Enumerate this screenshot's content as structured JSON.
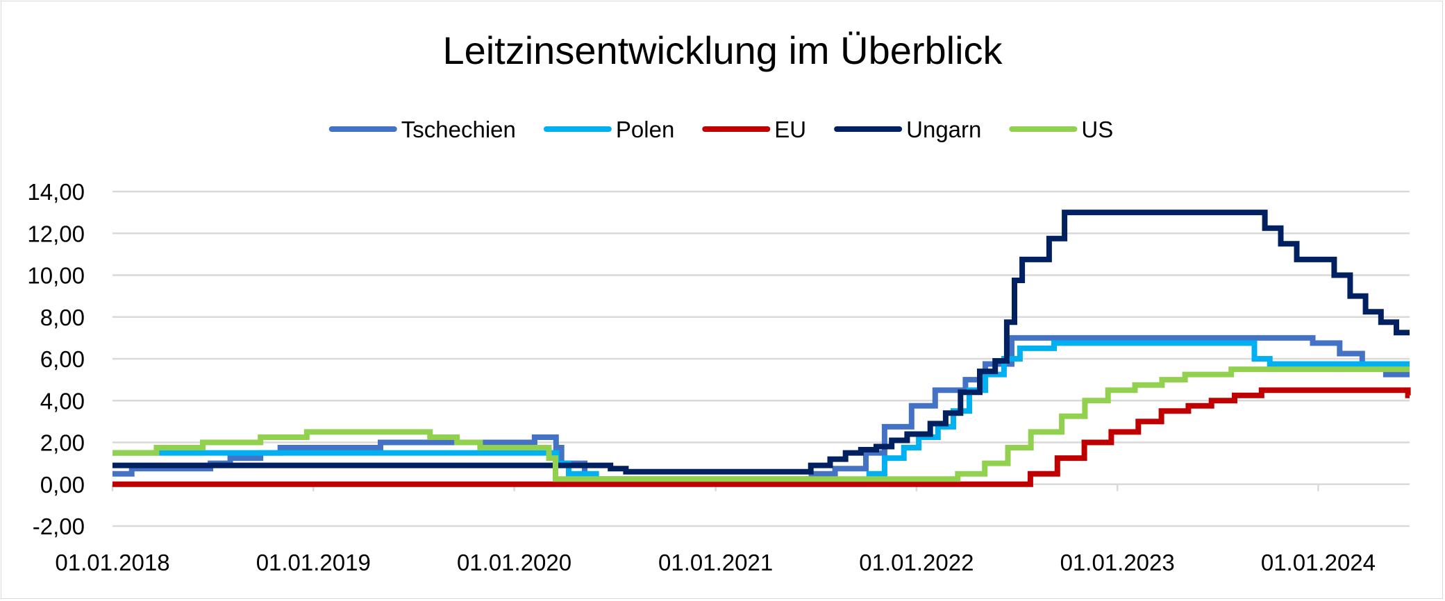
{
  "chart_data": {
    "type": "line",
    "title": "Leitzinsentwicklung im Überblick",
    "xlabel": "",
    "ylabel": "",
    "x_ticks": [
      "01.01.2018",
      "01.01.2019",
      "01.01.2020",
      "01.01.2021",
      "01.01.2022",
      "01.01.2023",
      "01.01.2024"
    ],
    "y_ticks": [
      "-2,00",
      "0,00",
      "2,00",
      "4,00",
      "6,00",
      "8,00",
      "10,00",
      "12,00",
      "14,00"
    ],
    "xlim": [
      "2018-01-01",
      "2024-06-15"
    ],
    "ylim": [
      -2,
      14
    ],
    "grid": true,
    "legend_position": "top",
    "series": [
      {
        "name": "Tschechien",
        "color": "#4472c4",
        "points": [
          [
            "2018-01-01",
            0.5
          ],
          [
            "2018-02-05",
            0.75
          ],
          [
            "2018-06-28",
            1.0
          ],
          [
            "2018-08-03",
            1.25
          ],
          [
            "2018-09-27",
            1.5
          ],
          [
            "2018-11-02",
            1.75
          ],
          [
            "2019-05-03",
            2.0
          ],
          [
            "2020-02-07",
            2.25
          ],
          [
            "2020-03-17",
            1.75
          ],
          [
            "2020-03-27",
            1.0
          ],
          [
            "2020-05-08",
            0.25
          ],
          [
            "2021-06-24",
            0.5
          ],
          [
            "2021-08-06",
            0.75
          ],
          [
            "2021-10-01",
            1.5
          ],
          [
            "2021-11-04",
            2.75
          ],
          [
            "2021-12-23",
            3.75
          ],
          [
            "2022-02-04",
            4.5
          ],
          [
            "2022-03-31",
            5.0
          ],
          [
            "2022-05-06",
            5.75
          ],
          [
            "2022-06-23",
            7.0
          ],
          [
            "2023-12-22",
            6.75
          ],
          [
            "2024-02-09",
            6.25
          ],
          [
            "2024-03-21",
            5.75
          ],
          [
            "2024-05-03",
            5.25
          ],
          [
            "2024-06-15",
            5.25
          ]
        ]
      },
      {
        "name": "Polen",
        "color": "#00b0f0",
        "points": [
          [
            "2018-01-01",
            1.5
          ],
          [
            "2020-03-18",
            1.0
          ],
          [
            "2020-04-09",
            0.5
          ],
          [
            "2020-05-29",
            0.1
          ],
          [
            "2021-10-07",
            0.5
          ],
          [
            "2021-11-04",
            1.25
          ],
          [
            "2021-12-09",
            1.75
          ],
          [
            "2022-01-05",
            2.25
          ],
          [
            "2022-02-09",
            2.75
          ],
          [
            "2022-03-09",
            3.5
          ],
          [
            "2022-04-07",
            4.5
          ],
          [
            "2022-05-06",
            5.25
          ],
          [
            "2022-06-09",
            6.0
          ],
          [
            "2022-07-08",
            6.5
          ],
          [
            "2022-09-08",
            6.75
          ],
          [
            "2023-09-07",
            6.0
          ],
          [
            "2023-10-05",
            5.75
          ],
          [
            "2024-06-15",
            5.75
          ]
        ]
      },
      {
        "name": "EU",
        "color": "#c00000",
        "points": [
          [
            "2018-01-01",
            0.0
          ],
          [
            "2022-07-27",
            0.5
          ],
          [
            "2022-09-14",
            1.25
          ],
          [
            "2022-11-02",
            2.0
          ],
          [
            "2022-12-21",
            2.5
          ],
          [
            "2023-02-08",
            3.0
          ],
          [
            "2023-03-22",
            3.5
          ],
          [
            "2023-05-10",
            3.75
          ],
          [
            "2023-06-21",
            4.0
          ],
          [
            "2023-08-02",
            4.25
          ],
          [
            "2023-09-20",
            4.5
          ],
          [
            "2024-06-12",
            4.25
          ],
          [
            "2024-06-15",
            4.25
          ]
        ]
      },
      {
        "name": "Ungarn",
        "color": "#002060",
        "points": [
          [
            "2018-01-01",
            0.9
          ],
          [
            "2020-06-24",
            0.75
          ],
          [
            "2020-07-22",
            0.6
          ],
          [
            "2021-06-23",
            0.9
          ],
          [
            "2021-07-28",
            1.2
          ],
          [
            "2021-08-25",
            1.5
          ],
          [
            "2021-09-22",
            1.65
          ],
          [
            "2021-10-20",
            1.8
          ],
          [
            "2021-11-17",
            2.1
          ],
          [
            "2021-12-15",
            2.4
          ],
          [
            "2022-01-26",
            2.9
          ],
          [
            "2022-02-23",
            3.4
          ],
          [
            "2022-03-22",
            4.4
          ],
          [
            "2022-04-26",
            5.4
          ],
          [
            "2022-05-24",
            5.9
          ],
          [
            "2022-06-14",
            7.75
          ],
          [
            "2022-06-28",
            9.75
          ],
          [
            "2022-07-12",
            10.75
          ],
          [
            "2022-08-30",
            11.75
          ],
          [
            "2022-09-27",
            13.0
          ],
          [
            "2023-09-26",
            12.25
          ],
          [
            "2023-10-25",
            11.5
          ],
          [
            "2023-11-23",
            10.75
          ],
          [
            "2024-01-30",
            10.0
          ],
          [
            "2024-02-28",
            9.0
          ],
          [
            "2024-03-27",
            8.25
          ],
          [
            "2024-04-24",
            7.75
          ],
          [
            "2024-05-22",
            7.25
          ],
          [
            "2024-06-15",
            7.25
          ]
        ]
      },
      {
        "name": "US",
        "color": "#92d050",
        "points": [
          [
            "2018-01-01",
            1.5
          ],
          [
            "2018-03-22",
            1.75
          ],
          [
            "2018-06-14",
            2.0
          ],
          [
            "2018-09-27",
            2.25
          ],
          [
            "2018-12-20",
            2.5
          ],
          [
            "2019-08-01",
            2.25
          ],
          [
            "2019-09-19",
            2.0
          ],
          [
            "2019-10-31",
            1.75
          ],
          [
            "2020-03-04",
            1.25
          ],
          [
            "2020-03-16",
            0.25
          ],
          [
            "2022-03-17",
            0.5
          ],
          [
            "2022-05-05",
            1.0
          ],
          [
            "2022-06-16",
            1.75
          ],
          [
            "2022-07-28",
            2.5
          ],
          [
            "2022-09-22",
            3.25
          ],
          [
            "2022-11-03",
            4.0
          ],
          [
            "2022-12-15",
            4.5
          ],
          [
            "2023-02-02",
            4.75
          ],
          [
            "2023-03-23",
            5.0
          ],
          [
            "2023-05-04",
            5.25
          ],
          [
            "2023-07-27",
            5.5
          ],
          [
            "2024-06-15",
            5.5
          ]
        ]
      }
    ]
  }
}
